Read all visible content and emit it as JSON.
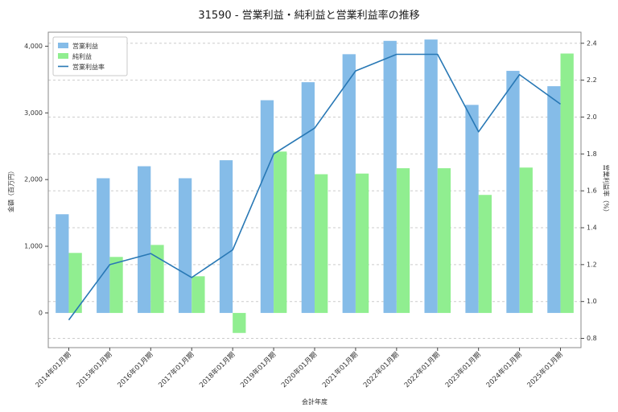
{
  "chart_data": {
    "type": "bar+line",
    "title": "31590 - 営業利益・純利益と営業利益率の推移",
    "xlabel": "会計年度",
    "ylabel_left": "金額（百万円）",
    "ylabel_right": "営業利益率（%）",
    "categories": [
      "2014年01月期",
      "2015年01月期",
      "2016年01月期",
      "2017年01月期",
      "2018年01月期",
      "2019年01月期",
      "2020年01月期",
      "2021年01月期",
      "2022年01月期",
      "2022年01月期",
      "2023年01月期",
      "2024年01月期",
      "2025年01月期"
    ],
    "series": [
      {
        "name": "営業利益",
        "type": "bar",
        "axis": "left",
        "color": "#85bce8",
        "values": [
          1480,
          2020,
          2200,
          2020,
          2290,
          3190,
          3460,
          3880,
          4080,
          4100,
          3120,
          3630,
          3400
        ]
      },
      {
        "name": "純利益",
        "type": "bar",
        "axis": "left",
        "color": "#90ee90",
        "values": [
          900,
          840,
          1020,
          550,
          -300,
          2420,
          2080,
          2090,
          2170,
          2170,
          1770,
          2180,
          3890
        ]
      },
      {
        "name": "営業利益率",
        "type": "line",
        "axis": "right",
        "color": "#2878b5",
        "values": [
          0.9,
          1.2,
          1.26,
          1.13,
          1.28,
          1.8,
          1.94,
          2.25,
          2.34,
          2.34,
          1.92,
          2.23,
          2.07
        ]
      }
    ],
    "left_axis": {
      "ylim": [
        -520,
        4210
      ],
      "ticks": [
        0,
        1000,
        2000,
        3000,
        4000
      ],
      "tick_labels": [
        "0",
        "1,000",
        "2,000",
        "3,000",
        "4,000"
      ]
    },
    "right_axis": {
      "ylim": [
        0.75,
        2.46
      ],
      "ticks": [
        0.8,
        1.0,
        1.2,
        1.4,
        1.6,
        1.8,
        2.0,
        2.2,
        2.4
      ],
      "tick_labels": [
        "0.8",
        "1.0",
        "1.2",
        "1.4",
        "1.6",
        "1.8",
        "2.0",
        "2.2",
        "2.4"
      ]
    },
    "grid": {
      "axis": "right",
      "style": "dashed",
      "color": "#cccccc"
    },
    "legend": {
      "position": "upper-left"
    },
    "frame_color": "#8a8a8a",
    "tick_color": "#444444",
    "text_color": "#333333"
  }
}
